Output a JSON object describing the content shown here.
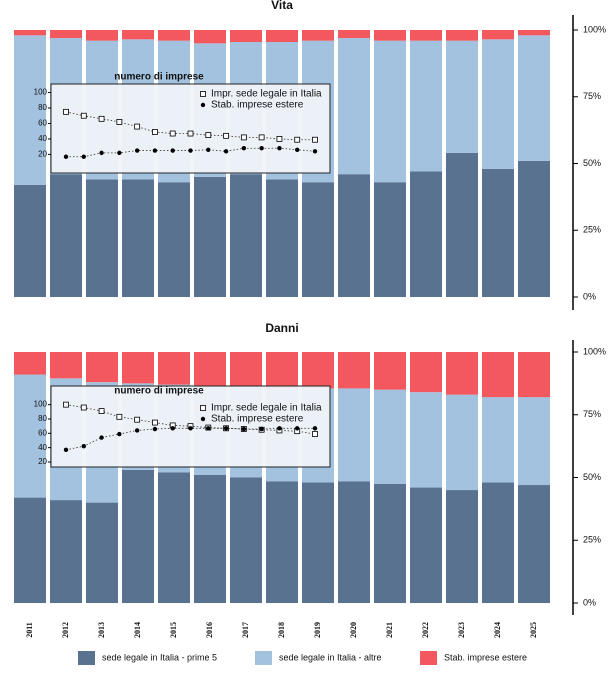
{
  "chart_data": [
    {
      "type": "bar",
      "stacked": true,
      "title": "Vita",
      "series": [
        {
          "color": "#587290",
          "values": [
            42,
            46,
            44,
            44,
            43,
            45,
            46,
            44,
            43,
            46,
            43,
            47,
            54,
            48,
            51
          ]
        },
        {
          "color": "#a3c2df",
          "values": [
            56,
            51,
            52,
            52.5,
            53,
            50,
            49.5,
            51.5,
            53,
            51,
            53,
            49,
            42,
            48.5,
            47
          ]
        },
        {
          "color": "#f2585d",
          "values": [
            2,
            3,
            4,
            3.5,
            4,
            5,
            4.5,
            4.5,
            4,
            3,
            4,
            4,
            4,
            3.5,
            2
          ]
        }
      ],
      "ylim": [
        0,
        100
      ],
      "yticks": [
        {
          "value": 0,
          "label": "0%"
        },
        {
          "value": 25,
          "label": "25%"
        },
        {
          "value": 50,
          "label": "50%"
        },
        {
          "value": 75,
          "label": "75%"
        },
        {
          "value": 100,
          "label": "100%"
        }
      ],
      "inset": {
        "type": "line",
        "title": "numero di imprese",
        "ylim": [
          -4,
          111
        ],
        "yticks": [
          20,
          40,
          60,
          80,
          100
        ],
        "series": [
          {
            "name": "Impr. sede legale in Italia",
            "marker": "square",
            "values": [
              75,
              70,
              66,
              62,
              56,
              49,
              47,
              47,
              45,
              44,
              42,
              42,
              40,
              39,
              39
            ]
          },
          {
            "name": "Stab. imprese estere",
            "marker": "dot",
            "values": [
              17,
              17,
              22,
              22,
              25,
              25,
              25,
              25,
              26,
              24,
              28,
              28,
              28,
              26,
              24
            ]
          }
        ]
      }
    },
    {
      "type": "bar",
      "stacked": true,
      "title": "Danni",
      "categories": [
        "2011",
        "2012",
        "2013",
        "2014",
        "2015",
        "2016",
        "2017",
        "2018",
        "2019",
        "2020",
        "2021",
        "2022",
        "2023",
        "2024",
        "2025"
      ],
      "series": [
        {
          "name": "sede legale in Italia - prime 5",
          "color": "#587290",
          "values": [
            42,
            41,
            40,
            53,
            52,
            51,
            50,
            48.5,
            48,
            48.5,
            47.5,
            46,
            45,
            48,
            47
          ]
        },
        {
          "name": "sede legale in Italia - altre",
          "color": "#a3c2df",
          "values": [
            49,
            48.5,
            48,
            34.5,
            35,
            35.5,
            36.5,
            37,
            37.5,
            37,
            37.5,
            38,
            38,
            34,
            35
          ]
        },
        {
          "name": "Stab. imprese estere",
          "color": "#f2585d",
          "values": [
            9,
            10.5,
            12,
            12.5,
            13,
            13.5,
            13.5,
            14.5,
            14.5,
            14.5,
            15,
            16,
            17,
            18,
            18
          ]
        }
      ],
      "ylim": [
        0,
        100
      ],
      "yticks": [
        {
          "value": 0,
          "label": "0%"
        },
        {
          "value": 25,
          "label": "25%"
        },
        {
          "value": 50,
          "label": "50%"
        },
        {
          "value": 75,
          "label": "75%"
        },
        {
          "value": 100,
          "label": "100%"
        }
      ],
      "inset": {
        "type": "line",
        "title": "numero di imprese",
        "ylim": [
          13,
          126
        ],
        "yticks": [
          20,
          40,
          60,
          80,
          100
        ],
        "series": [
          {
            "name": "Impr. sede legale in Italia",
            "marker": "square",
            "values": [
              100,
              96,
              91,
              83,
              79,
              75,
              71,
              70,
              68,
              67,
              66,
              65,
              64,
              63,
              59
            ]
          },
          {
            "name": "Stab. imprese estere",
            "marker": "dot",
            "values": [
              37,
              42,
              54,
              59,
              64,
              66,
              67,
              67,
              67,
              67,
              66,
              66,
              67,
              67,
              67
            ]
          }
        ]
      }
    }
  ]
}
